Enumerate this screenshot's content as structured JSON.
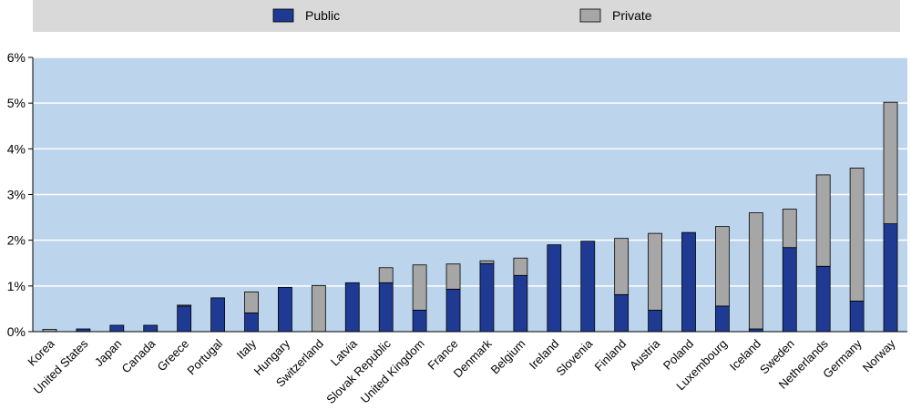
{
  "chart_data": {
    "type": "bar",
    "stacked": true,
    "categories": [
      "Korea",
      "United States",
      "Japan",
      "Canada",
      "Greece",
      "Portugal",
      "Italy",
      "Hungary",
      "Switzerland",
      "Latvia",
      "Slovak Republic",
      "United Kingdom",
      "France",
      "Denmark",
      "Belgium",
      "Ireland",
      "Slovenia",
      "Finland",
      "Austria",
      "Poland",
      "Luxembourg",
      "Iceland",
      "Sweden",
      "Netherlands",
      "Germany",
      "Norway"
    ],
    "series": [
      {
        "name": "Public",
        "color": "#1f3a93",
        "values": [
          0.0,
          0.06,
          0.14,
          0.14,
          0.56,
          0.74,
          0.41,
          0.97,
          0.0,
          1.07,
          1.07,
          0.47,
          0.93,
          1.49,
          1.23,
          1.9,
          1.98,
          0.81,
          0.47,
          2.17,
          0.56,
          0.06,
          1.84,
          1.43,
          0.67,
          2.36
        ]
      },
      {
        "name": "Private",
        "color": "#a6a6a6",
        "values": [
          0.05,
          0.0,
          0.0,
          0.0,
          0.02,
          0.0,
          0.46,
          0.0,
          1.01,
          0.0,
          0.33,
          0.99,
          0.55,
          0.06,
          0.38,
          0.0,
          0.0,
          1.23,
          1.68,
          0.0,
          1.74,
          2.54,
          0.84,
          2.0,
          2.91,
          2.66
        ]
      }
    ],
    "y_ticks": [
      "0%",
      "1%",
      "2%",
      "3%",
      "4%",
      "5%",
      "6%"
    ],
    "ylim": [
      0,
      6
    ],
    "grid": true,
    "legend_position": "top"
  }
}
